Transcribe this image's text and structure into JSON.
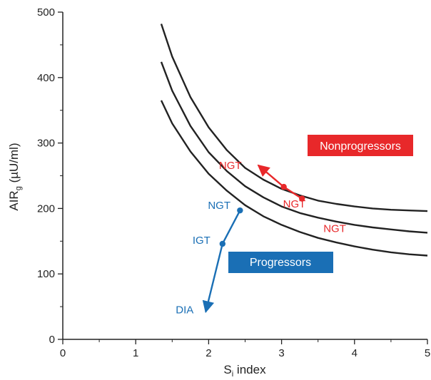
{
  "chart_data": {
    "type": "line",
    "xlabel": {
      "main": "S",
      "sub": "i",
      "rest": " index"
    },
    "ylabel": {
      "main": "AIR",
      "sub": "g",
      "rest": " (µU/ml)"
    },
    "xlim": [
      0,
      5
    ],
    "ylim": [
      0,
      500
    ],
    "x_ticks": [
      "0",
      "1",
      "2",
      "3",
      "4",
      "5"
    ],
    "y_ticks": [
      "0",
      "100",
      "200",
      "300",
      "400",
      "500"
    ],
    "grid": false,
    "curves": [
      {
        "x": [
          1.35,
          1.5,
          1.75,
          2.0,
          2.25,
          2.5,
          2.75,
          3.0,
          3.25,
          3.5,
          3.75,
          4.0,
          4.25,
          4.5,
          4.75,
          5.0
        ],
        "y": [
          482,
          432,
          370,
          324,
          289,
          262,
          244,
          230,
          220,
          212,
          207,
          203,
          200,
          198,
          197,
          196
        ]
      },
      {
        "x": [
          1.35,
          1.5,
          1.75,
          2.0,
          2.25,
          2.5,
          2.75,
          3.0,
          3.25,
          3.5,
          3.75,
          4.0,
          4.25,
          4.5,
          4.75,
          5.0
        ],
        "y": [
          424,
          380,
          326,
          286,
          257,
          234,
          217,
          203,
          193,
          186,
          180,
          175,
          171,
          168,
          165,
          163
        ]
      },
      {
        "x": [
          1.35,
          1.5,
          1.75,
          2.0,
          2.25,
          2.5,
          2.75,
          3.0,
          3.25,
          3.5,
          3.75,
          4.0,
          4.25,
          4.5,
          4.75,
          5.0
        ],
        "y": [
          365,
          330,
          287,
          253,
          227,
          205,
          188,
          175,
          164,
          155,
          148,
          142,
          137,
          133,
          130,
          128
        ]
      }
    ],
    "series": [
      {
        "group": "nonprogressors",
        "color": "#e8282a",
        "points": [
          {
            "x": 3.28,
            "y": 215,
            "label": "NGT"
          },
          {
            "x": 3.03,
            "y": 233,
            "label": "NGT"
          },
          {
            "x": 2.68,
            "y": 266,
            "label": "NGT"
          }
        ]
      },
      {
        "group": "progressors",
        "color": "#1a6fb5",
        "points": [
          {
            "x": 2.43,
            "y": 197,
            "label": "NGT"
          },
          {
            "x": 2.19,
            "y": 146,
            "label": "IGT"
          },
          {
            "x": 1.96,
            "y": 42,
            "label": "DIA"
          }
        ]
      }
    ],
    "annotations": [
      {
        "text": "Nonprogressors",
        "color": "#e8282a"
      },
      {
        "text": "Progressors",
        "color": "#1a6fb5"
      }
    ]
  }
}
